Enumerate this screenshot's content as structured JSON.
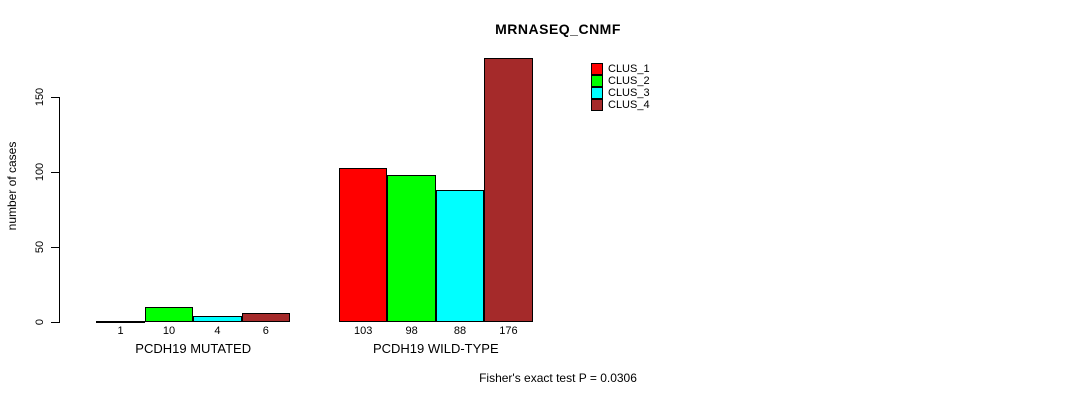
{
  "chart_data": {
    "type": "bar",
    "title": "MRNASEQ_CNMF",
    "ylabel": "number of cases",
    "xlabel": "",
    "categories": [
      "PCDH19 MUTATED",
      "PCDH19 WILD-TYPE"
    ],
    "series": [
      {
        "name": "CLUS_1",
        "color": "#FF0000",
        "values": [
          1,
          103
        ]
      },
      {
        "name": "CLUS_2",
        "color": "#00FF00",
        "values": [
          10,
          98
        ]
      },
      {
        "name": "CLUS_3",
        "color": "#00FFFF",
        "values": [
          4,
          88
        ]
      },
      {
        "name": "CLUS_4",
        "color": "#A52A2A",
        "values": [
          6,
          176
        ]
      }
    ],
    "yticks": [
      0,
      50,
      100,
      150
    ],
    "ylim": [
      0,
      176
    ],
    "grid": false,
    "bar_value_labels_shown": true,
    "legend_position": "top-right",
    "annotation": "Fisher's exact test P = 0.0306"
  }
}
